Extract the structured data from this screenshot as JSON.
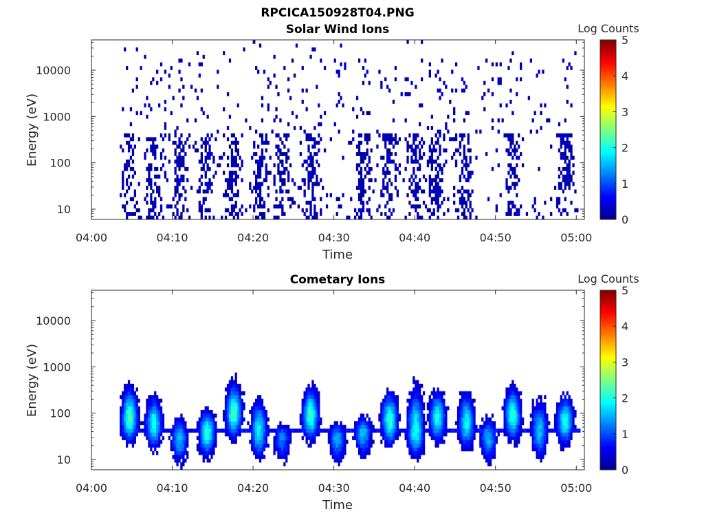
{
  "figure": {
    "title": "RPCICA150928T04.PNG"
  },
  "chart_data": [
    {
      "type": "heatmap",
      "title": "Solar Wind Ions",
      "xlabel": "Time",
      "ylabel": "Energy (eV)",
      "yscale": "log",
      "ylim": [
        6,
        45000
      ],
      "xlim": [
        "04:00",
        "05:01"
      ],
      "x_ticks": [
        "04:00",
        "04:10",
        "04:20",
        "04:30",
        "04:40",
        "04:50",
        "05:00"
      ],
      "y_ticks": [
        "10",
        "100",
        "1000",
        "10000"
      ],
      "colorbar": {
        "label": "Log Counts",
        "range": [
          0,
          5
        ],
        "ticks": [
          "0",
          "1",
          "2",
          "3",
          "4",
          "5"
        ],
        "colormap": "jet"
      },
      "time_range": [
        "04:00",
        "05:00"
      ],
      "note_cells": "sparse single counts (log counts ~0-0.5), mostly dark blue",
      "active_bursts_min": [
        4.5,
        7.5,
        10.8,
        14.0,
        17.5,
        20.8,
        23.5,
        27.0,
        33.5,
        36.8,
        40.0,
        42.5,
        46.0,
        52.0,
        58.5
      ]
    },
    {
      "type": "heatmap",
      "title": "Cometary Ions",
      "xlabel": "Time",
      "ylabel": "Energy (eV)",
      "yscale": "log",
      "ylim": [
        6,
        45000
      ],
      "xlim": [
        "04:00",
        "05:01"
      ],
      "x_ticks": [
        "04:00",
        "04:10",
        "04:20",
        "04:30",
        "04:40",
        "04:50",
        "05:00"
      ],
      "y_ticks": [
        "10",
        "100",
        "1000",
        "10000"
      ],
      "colorbar": {
        "label": "Log Counts",
        "range": [
          0,
          5
        ],
        "ticks": [
          "0",
          "1",
          "2",
          "3",
          "4",
          "5"
        ],
        "colormap": "jet"
      },
      "baseline_energy_ev": 40,
      "bursts": [
        {
          "t": 4.6,
          "peak_e": 80,
          "top_e": 500,
          "intensity": 1.8
        },
        {
          "t": 7.6,
          "peak_e": 60,
          "top_e": 300,
          "intensity": 1.6
        },
        {
          "t": 10.8,
          "peak_e": 30,
          "top_e": 100,
          "intensity": 1.3
        },
        {
          "t": 14.2,
          "peak_e": 40,
          "top_e": 150,
          "intensity": 1.7
        },
        {
          "t": 17.5,
          "peak_e": 100,
          "top_e": 650,
          "intensity": 1.8
        },
        {
          "t": 20.6,
          "peak_e": 40,
          "top_e": 300,
          "intensity": 1.5
        },
        {
          "t": 23.5,
          "peak_e": 30,
          "top_e": 80,
          "intensity": 1.0
        },
        {
          "t": 27.0,
          "peak_e": 90,
          "top_e": 500,
          "intensity": 1.8
        },
        {
          "t": 30.3,
          "peak_e": 30,
          "top_e": 80,
          "intensity": 1.2
        },
        {
          "t": 33.5,
          "peak_e": 40,
          "top_e": 100,
          "intensity": 1.3
        },
        {
          "t": 36.8,
          "peak_e": 70,
          "top_e": 400,
          "intensity": 1.7
        },
        {
          "t": 40.0,
          "peak_e": 40,
          "top_e": 600,
          "intensity": 1.6
        },
        {
          "t": 42.7,
          "peak_e": 80,
          "top_e": 400,
          "intensity": 1.6
        },
        {
          "t": 46.3,
          "peak_e": 60,
          "top_e": 400,
          "intensity": 1.5
        },
        {
          "t": 49.0,
          "peak_e": 30,
          "top_e": 100,
          "intensity": 1.2
        },
        {
          "t": 52.0,
          "peak_e": 90,
          "top_e": 500,
          "intensity": 1.7
        },
        {
          "t": 55.3,
          "peak_e": 40,
          "top_e": 300,
          "intensity": 1.3
        },
        {
          "t": 58.5,
          "peak_e": 70,
          "top_e": 300,
          "intensity": 1.6
        }
      ]
    }
  ]
}
